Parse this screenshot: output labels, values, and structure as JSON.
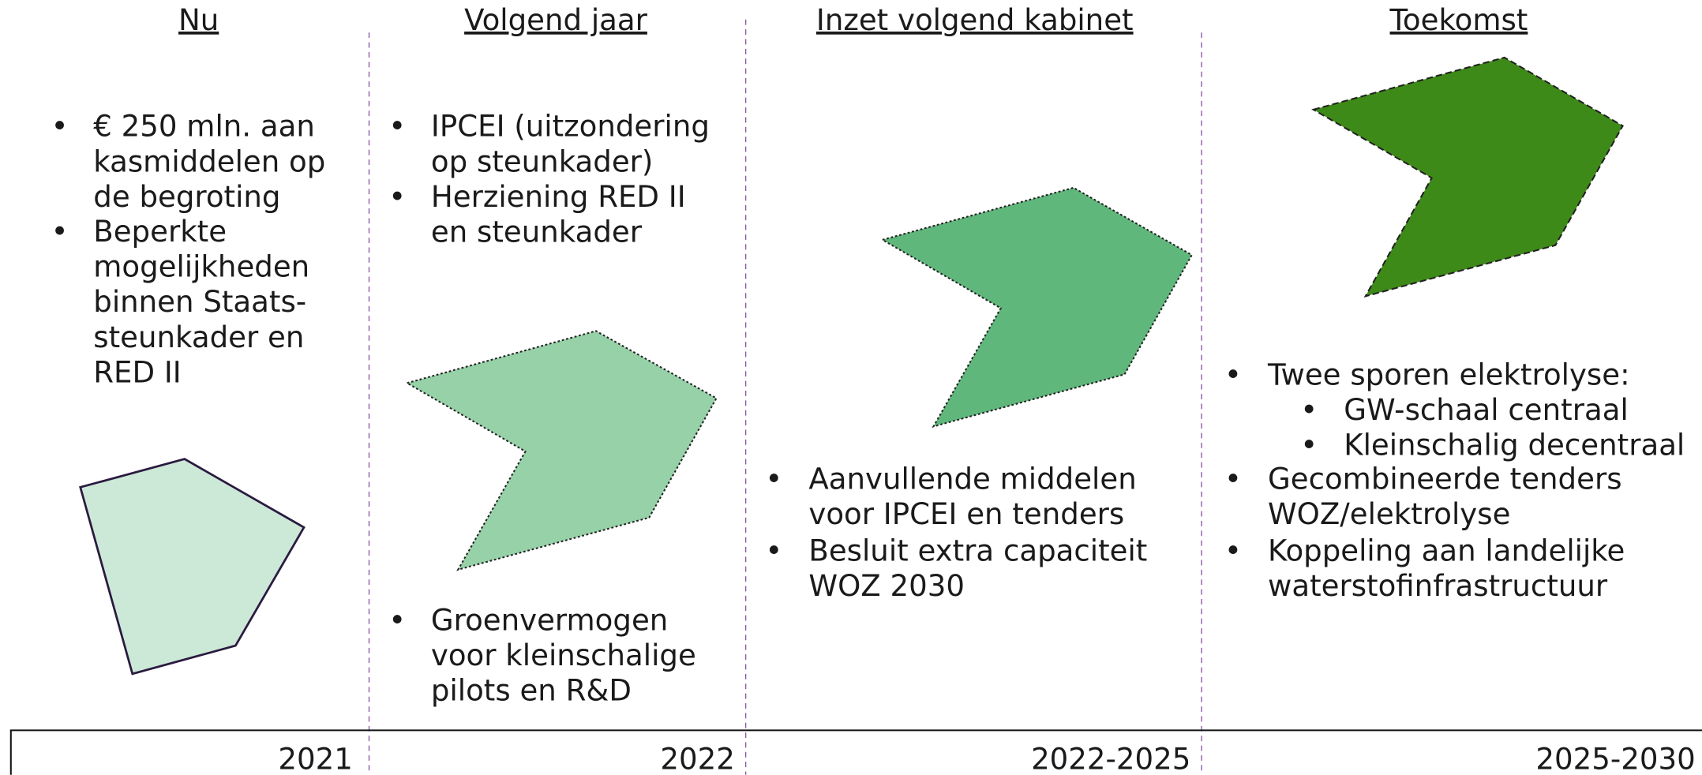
{
  "columns": [
    {
      "title": "Nu",
      "year": "2021",
      "bullets": [
        {
          "lines": [
            "€ 250 mln. aan",
            "kasmiddelen op",
            "de begroting"
          ]
        },
        {
          "lines": [
            "Beperkte",
            "mogelijkheden",
            "binnen Staats-",
            "steunkader en",
            "RED II"
          ]
        }
      ]
    },
    {
      "title": "Volgend jaar",
      "year": "2022",
      "bullets": [
        {
          "lines": [
            "IPCEI (uitzondering",
            "op steunkader)"
          ]
        },
        {
          "lines": [
            "Herziening RED II",
            "en steunkader"
          ]
        },
        {
          "lines": [
            "Groenvermogen",
            "voor kleinschalige",
            "pilots en R&D"
          ]
        }
      ]
    },
    {
      "title": "Inzet volgend kabinet",
      "year": "2022-2025",
      "bullets": [
        {
          "lines": [
            "Aanvullende middelen",
            "voor IPCEI en tenders"
          ]
        },
        {
          "lines": [
            "Besluit extra capaciteit",
            "WOZ 2030"
          ]
        }
      ]
    },
    {
      "title": "Toekomst",
      "year": "2025-2030",
      "bullets": [
        {
          "lines": [
            "Twee sporen elektrolyse:"
          ],
          "sub": [
            {
              "lines": [
                "GW-schaal centraal"
              ]
            },
            {
              "lines": [
                "Kleinschalig decentraal"
              ]
            }
          ]
        },
        {
          "lines": [
            "Gecombineerde tenders",
            "WOZ/elektrolyse"
          ]
        },
        {
          "lines": [
            "Koppeling aan landelijke",
            "waterstofinfrastructuur"
          ]
        }
      ]
    }
  ]
}
